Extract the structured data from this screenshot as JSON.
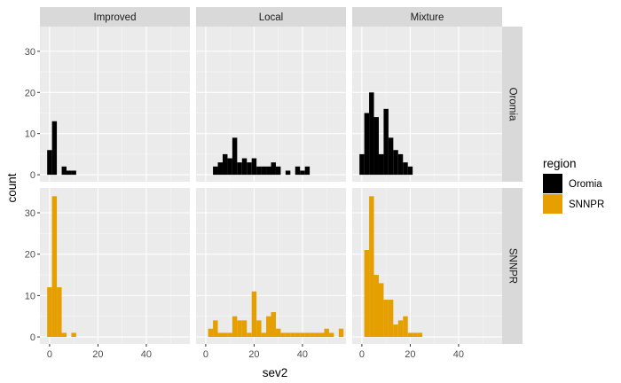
{
  "chart_data": {
    "type": "bar",
    "subtype": "faceted-histogram",
    "xlabel": "sev2",
    "ylabel": "count",
    "xlim": [
      -4,
      58
    ],
    "ylim": [
      -1.7,
      36
    ],
    "x_ticks": [
      0,
      20,
      40
    ],
    "y_ticks": [
      0,
      10,
      20,
      30
    ],
    "bin_width": 2,
    "columns": [
      "Improved",
      "Local",
      "Mixture"
    ],
    "rows": [
      "Oromia",
      "SNNPR"
    ],
    "legend": {
      "title": "region",
      "position": "right",
      "entries": [
        {
          "label": "Oromia",
          "color": "#000000"
        },
        {
          "label": "SNNPR",
          "color": "#E69F00"
        }
      ]
    },
    "panels": [
      {
        "row": "Oromia",
        "column": "Improved",
        "color": "#000000",
        "bins": [
          [
            0,
            6
          ],
          [
            2,
            13
          ],
          [
            4,
            0
          ],
          [
            6,
            2
          ],
          [
            8,
            1
          ],
          [
            10,
            1
          ]
        ]
      },
      {
        "row": "Oromia",
        "column": "Local",
        "color": "#000000",
        "bins": [
          [
            4,
            2
          ],
          [
            6,
            3
          ],
          [
            8,
            5
          ],
          [
            10,
            4
          ],
          [
            12,
            9
          ],
          [
            14,
            3
          ],
          [
            16,
            4
          ],
          [
            18,
            3
          ],
          [
            20,
            4
          ],
          [
            22,
            2
          ],
          [
            24,
            2
          ],
          [
            26,
            2
          ],
          [
            28,
            3
          ],
          [
            30,
            2
          ],
          [
            32,
            0
          ],
          [
            34,
            1
          ],
          [
            36,
            0
          ],
          [
            38,
            2
          ],
          [
            40,
            1
          ],
          [
            42,
            2
          ]
        ]
      },
      {
        "row": "Oromia",
        "column": "Mixture",
        "color": "#000000",
        "bins": [
          [
            0,
            5
          ],
          [
            2,
            15
          ],
          [
            4,
            20
          ],
          [
            6,
            14
          ],
          [
            8,
            5
          ],
          [
            10,
            16
          ],
          [
            12,
            9
          ],
          [
            14,
            6
          ],
          [
            16,
            5
          ],
          [
            18,
            3
          ],
          [
            20,
            2
          ]
        ]
      },
      {
        "row": "SNNPR",
        "column": "Improved",
        "color": "#E69F00",
        "bins": [
          [
            0,
            12
          ],
          [
            2,
            34
          ],
          [
            4,
            12
          ],
          [
            6,
            1
          ],
          [
            8,
            0
          ],
          [
            10,
            1
          ]
        ]
      },
      {
        "row": "SNNPR",
        "column": "Local",
        "color": "#E69F00",
        "bins": [
          [
            2,
            2
          ],
          [
            4,
            4
          ],
          [
            6,
            1
          ],
          [
            8,
            1
          ],
          [
            10,
            1
          ],
          [
            12,
            5
          ],
          [
            14,
            4
          ],
          [
            16,
            4
          ],
          [
            18,
            1
          ],
          [
            20,
            11
          ],
          [
            22,
            4
          ],
          [
            24,
            1
          ],
          [
            26,
            5
          ],
          [
            28,
            6
          ],
          [
            30,
            2
          ],
          [
            32,
            1
          ],
          [
            34,
            1
          ],
          [
            36,
            1
          ],
          [
            38,
            1
          ],
          [
            40,
            1
          ],
          [
            42,
            1
          ],
          [
            44,
            1
          ],
          [
            46,
            1
          ],
          [
            48,
            1
          ],
          [
            50,
            2
          ],
          [
            52,
            1
          ],
          [
            54,
            0
          ],
          [
            56,
            2
          ]
        ]
      },
      {
        "row": "SNNPR",
        "column": "Mixture",
        "color": "#E69F00",
        "bins": [
          [
            2,
            21
          ],
          [
            4,
            34
          ],
          [
            6,
            15
          ],
          [
            8,
            13
          ],
          [
            10,
            9
          ],
          [
            12,
            9
          ],
          [
            14,
            3
          ],
          [
            16,
            4
          ],
          [
            18,
            5
          ],
          [
            20,
            1
          ],
          [
            22,
            1
          ],
          [
            24,
            1
          ]
        ]
      }
    ]
  }
}
